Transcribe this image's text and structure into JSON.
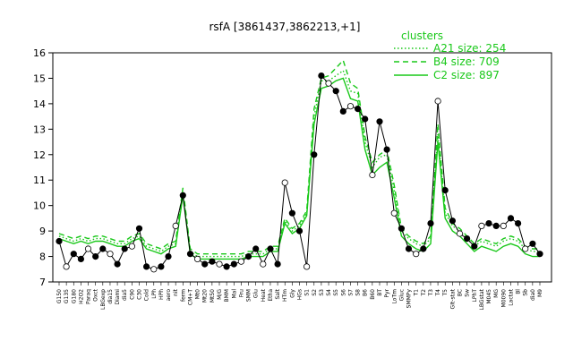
{
  "chart_data": {
    "type": "line",
    "title": "rsfA [3861437,3862213,+1]",
    "xlabel": "",
    "ylabel": "",
    "ylim": [
      7,
      16
    ],
    "yticks": [
      7,
      8,
      9,
      10,
      11,
      12,
      13,
      14,
      15,
      16
    ],
    "grid": false,
    "legend_title": "clusters",
    "legend_position": "top-right",
    "legend": [
      {
        "name": "A21 size: 254",
        "style": "dotted"
      },
      {
        "name": "B4 size: 709",
        "style": "dashed"
      },
      {
        "name": "C2 size: 897",
        "style": "solid"
      }
    ],
    "colors": {
      "series": "#19c819",
      "gene": "#000000"
    },
    "x_labels": [
      "G150",
      "G135",
      "G180",
      "H2O2",
      "Paraq",
      "Oxct",
      "LBGexp",
      "dia15",
      "Diami",
      "dia5",
      "C90",
      "C30",
      "Cold",
      "LPh",
      "HPh",
      "aero",
      "nit",
      "ferm",
      "CM+T",
      "Mt0",
      "Mt20",
      "Mt50",
      "M/G",
      "BMM",
      "Mal",
      "Fru",
      "SMM",
      "Glu",
      "Heat",
      "Etha",
      "Salt",
      "HTm",
      "Gly",
      "HGs",
      "S1",
      "S2",
      "S3",
      "S4",
      "S5",
      "S6",
      "S7",
      "S8",
      "B6",
      "B60",
      "BT",
      "Pyr",
      "LoTm",
      "Gluc",
      "SMMPy",
      "T1",
      "T2",
      "T3",
      "T4",
      "T5",
      "GIt-stat",
      "BC",
      "Sw",
      "LPhT",
      "LBGstat",
      "M045",
      "MG",
      "M0090",
      "Lactat",
      "Bl",
      "Sb",
      "dia0",
      "M9"
    ],
    "series_cluster_mean_A21": [
      8.8,
      8.7,
      8.6,
      8.7,
      8.6,
      8.7,
      8.7,
      8.6,
      8.5,
      8.5,
      8.7,
      8.8,
      8.4,
      8.3,
      8.2,
      8.4,
      8.5,
      10.5,
      8.2,
      8.0,
      8.0,
      8.0,
      8.0,
      8.0,
      8.0,
      8.0,
      8.1,
      8.1,
      8.1,
      8.3,
      8.3,
      9.4,
      9.0,
      9.2,
      9.7,
      13.5,
      14.9,
      14.9,
      15.1,
      15.3,
      14.5,
      14.4,
      12.5,
      11.5,
      11.9,
      12.0,
      10.6,
      9.0,
      8.7,
      8.5,
      8.4,
      8.7,
      12.8,
      9.7,
      9.2,
      9.0,
      8.7,
      8.4,
      8.6,
      8.5,
      8.4,
      8.6,
      8.7,
      8.6,
      8.3,
      8.2,
      8.2
    ],
    "series_cluster_mean_B4": [
      8.9,
      8.8,
      8.7,
      8.8,
      8.7,
      8.8,
      8.8,
      8.7,
      8.6,
      8.6,
      8.8,
      8.9,
      8.5,
      8.4,
      8.3,
      8.5,
      8.6,
      10.7,
      8.3,
      8.1,
      8.1,
      8.1,
      8.1,
      8.1,
      8.1,
      8.1,
      8.2,
      8.2,
      8.2,
      8.4,
      8.4,
      9.5,
      9.1,
      9.3,
      9.8,
      13.8,
      15.0,
      15.1,
      15.4,
      15.7,
      14.8,
      14.6,
      12.7,
      11.7,
      12.0,
      12.2,
      10.8,
      9.1,
      8.8,
      8.6,
      8.5,
      8.8,
      13.2,
      9.9,
      9.3,
      9.1,
      8.8,
      8.5,
      8.7,
      8.6,
      8.5,
      8.7,
      8.8,
      8.7,
      8.4,
      8.3,
      8.3
    ],
    "series_cluster_mean_C2": [
      8.7,
      8.6,
      8.5,
      8.6,
      8.5,
      8.6,
      8.6,
      8.5,
      8.4,
      8.4,
      8.6,
      8.7,
      8.3,
      8.2,
      8.1,
      8.3,
      8.4,
      10.4,
      8.1,
      7.9,
      7.9,
      7.9,
      7.9,
      7.9,
      7.9,
      7.9,
      8.0,
      8.0,
      8.0,
      8.2,
      8.2,
      9.3,
      8.9,
      9.1,
      9.6,
      13.2,
      14.6,
      14.7,
      14.9,
      15.0,
      14.2,
      14.1,
      12.2,
      11.2,
      11.5,
      11.7,
      10.3,
      8.8,
      8.5,
      8.3,
      8.2,
      8.5,
      12.5,
      9.5,
      9.0,
      8.8,
      8.5,
      8.2,
      8.4,
      8.3,
      8.2,
      8.4,
      8.5,
      8.4,
      8.1,
      8.0,
      8.0
    ],
    "series_gene": [
      8.6,
      7.6,
      8.1,
      7.9,
      8.3,
      8.0,
      8.3,
      8.1,
      7.7,
      8.3,
      8.4,
      9.1,
      7.6,
      7.5,
      7.6,
      8.0,
      9.2,
      10.4,
      8.1,
      7.9,
      7.7,
      7.8,
      7.7,
      7.6,
      7.7,
      7.8,
      8.0,
      8.3,
      7.7,
      8.3,
      7.7,
      10.9,
      9.7,
      9.0,
      7.6,
      12.0,
      15.1,
      14.8,
      14.5,
      13.7,
      13.9,
      13.8,
      13.4,
      11.2,
      13.3,
      12.2,
      9.7,
      9.1,
      8.3,
      8.1,
      8.3,
      9.3,
      14.1,
      10.6,
      9.4,
      8.9,
      8.7,
      8.4,
      9.2,
      9.3,
      9.2,
      9.2,
      9.5,
      9.3,
      8.3,
      8.5,
      8.1
    ]
  }
}
